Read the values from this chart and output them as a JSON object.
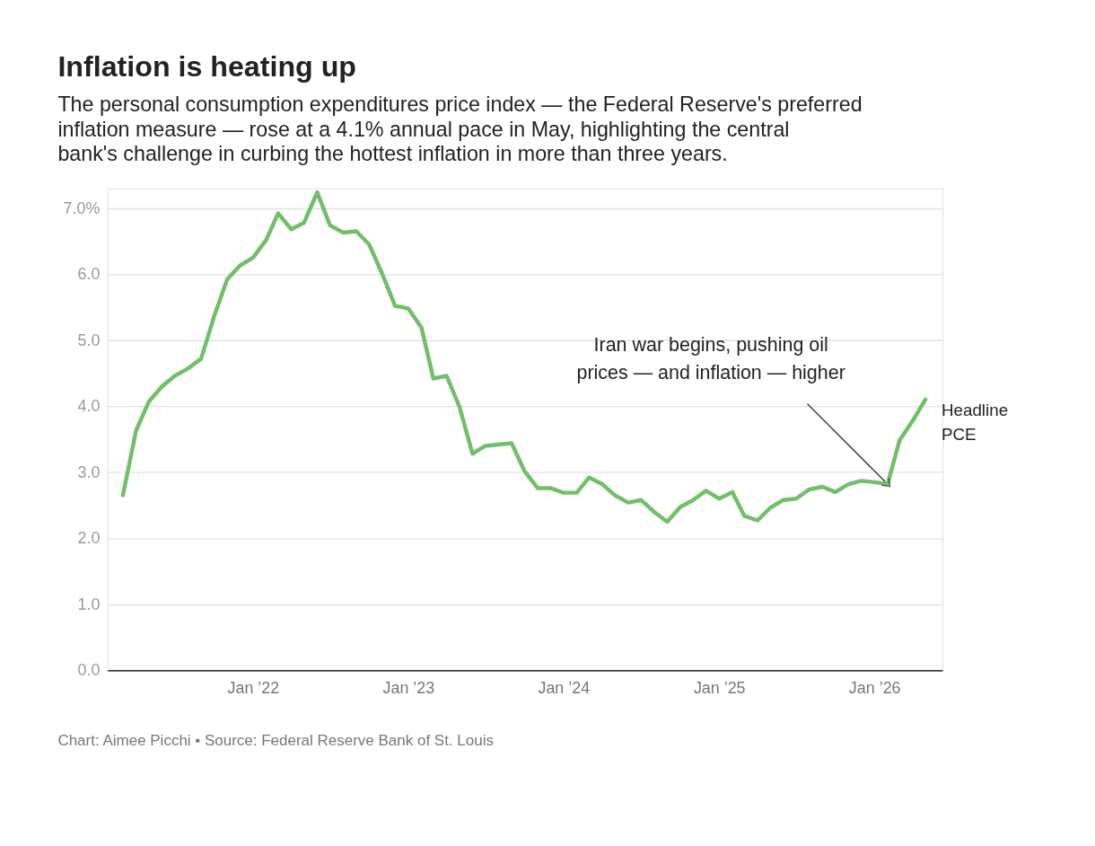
{
  "chart_data": {
    "type": "line",
    "title": "Inflation is heating up",
    "subtitle": "The personal consumption expenditures price index — the Federal Reserve's preferred inflation measure — rose at a 4.1% annual pace in May, highlighting the central bank's challenge in curbing the hottest inflation in more than three years.",
    "x": [
      "2021-03",
      "2021-04",
      "2021-05",
      "2021-06",
      "2021-07",
      "2021-08",
      "2021-09",
      "2021-10",
      "2021-11",
      "2021-12",
      "2022-01",
      "2022-02",
      "2022-03",
      "2022-04",
      "2022-05",
      "2022-06",
      "2022-07",
      "2022-08",
      "2022-09",
      "2022-10",
      "2022-11",
      "2022-12",
      "2023-01",
      "2023-02",
      "2023-03",
      "2023-04",
      "2023-05",
      "2023-06",
      "2023-07",
      "2023-08",
      "2023-09",
      "2023-10",
      "2023-11",
      "2023-12",
      "2024-01",
      "2024-02",
      "2024-03",
      "2024-04",
      "2024-05",
      "2024-06",
      "2024-07",
      "2024-08",
      "2024-09",
      "2024-10",
      "2024-11",
      "2024-12",
      "2025-01",
      "2025-02",
      "2025-03",
      "2025-04",
      "2025-05",
      "2025-06",
      "2025-07",
      "2025-08",
      "2025-09",
      "2025-10",
      "2025-11",
      "2025-12",
      "2026-01",
      "2026-02",
      "2026-03",
      "2026-04",
      "2026-05"
    ],
    "series": [
      {
        "name": "Headline PCE",
        "color": "#72bf6a",
        "values": [
          2.65,
          3.63,
          4.07,
          4.3,
          4.46,
          4.57,
          4.72,
          5.35,
          5.92,
          6.13,
          6.25,
          6.52,
          6.92,
          6.68,
          6.78,
          7.24,
          6.74,
          6.63,
          6.65,
          6.45,
          6.0,
          5.52,
          5.48,
          5.19,
          4.42,
          4.46,
          4.0,
          3.28,
          3.4,
          3.42,
          3.44,
          3.02,
          2.76,
          2.76,
          2.69,
          2.69,
          2.92,
          2.82,
          2.65,
          2.54,
          2.58,
          2.4,
          2.25,
          2.47,
          2.58,
          2.72,
          2.6,
          2.7,
          2.34,
          2.27,
          2.46,
          2.58,
          2.6,
          2.74,
          2.78,
          2.7,
          2.82,
          2.87,
          2.85,
          2.82,
          3.48,
          3.78,
          4.1
        ]
      }
    ],
    "xlim": [
      "2021-01-24",
      "2026-06-10"
    ],
    "xticks": [
      {
        "value": "2022-01",
        "label": "Jan ’22"
      },
      {
        "value": "2023-01",
        "label": "Jan ’23"
      },
      {
        "value": "2024-01",
        "label": "Jan ’24"
      },
      {
        "value": "2025-01",
        "label": "Jan ’25"
      },
      {
        "value": "2026-01",
        "label": "Jan ’26"
      }
    ],
    "ylim": [
      0,
      7.3
    ],
    "yticks": [
      {
        "value": 0,
        "label": "0.0"
      },
      {
        "value": 1,
        "label": "1.0"
      },
      {
        "value": 2,
        "label": "2.0"
      },
      {
        "value": 3,
        "label": "3.0"
      },
      {
        "value": 4,
        "label": "4.0"
      },
      {
        "value": 5,
        "label": "5.0"
      },
      {
        "value": 6,
        "label": "6.0"
      },
      {
        "value": 7,
        "label": "7.0%"
      }
    ],
    "grid": "y",
    "line_style": "solid",
    "annotations": [
      {
        "text": "Iran war begins, pushing oil prices — and inflation — higher",
        "x": "2026-02",
        "y": 2.82
      },
      "Chart: Aimee Picchi • Source: Federal Reserve Bank of St. Louis"
    ]
  }
}
